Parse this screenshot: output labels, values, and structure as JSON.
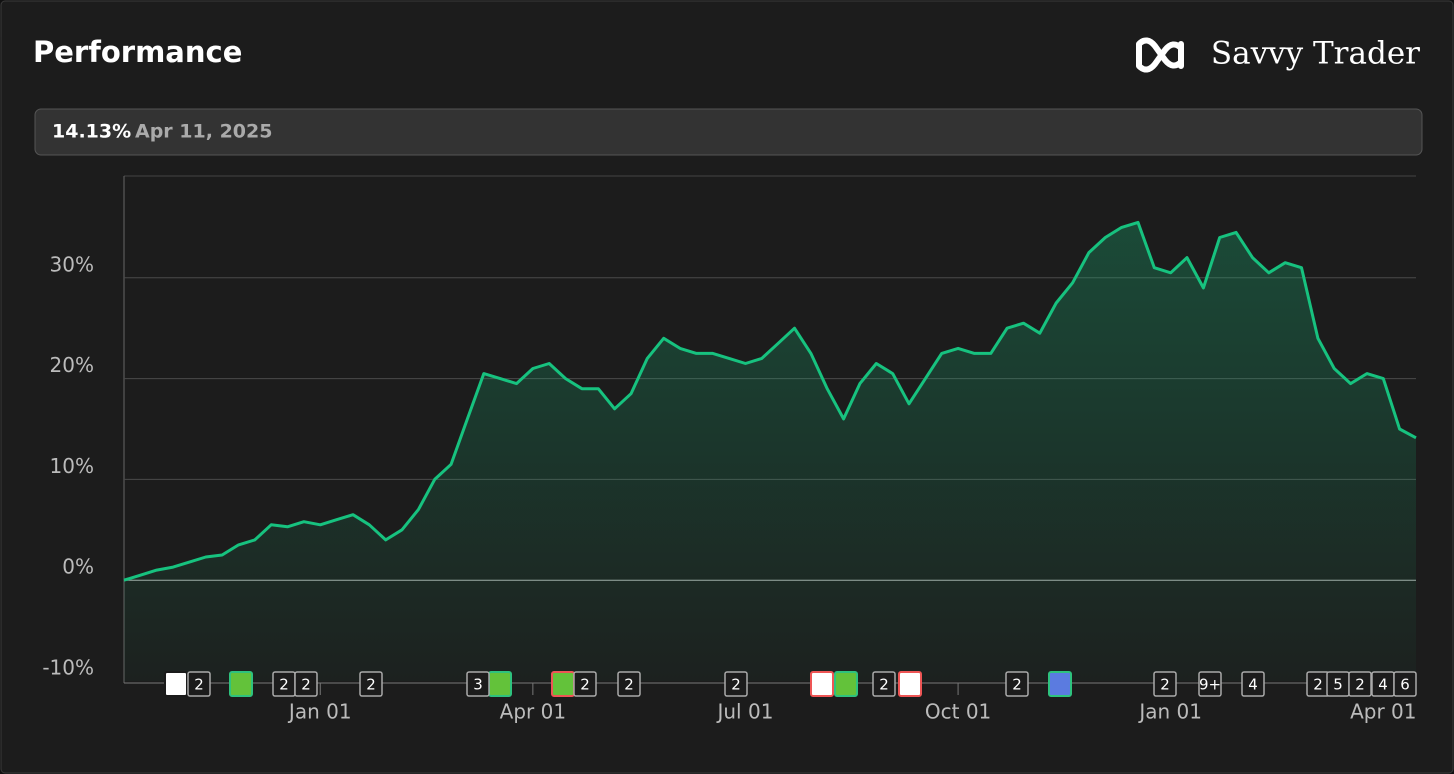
{
  "header": {
    "title": "Performance",
    "brand": "Savvy Trader"
  },
  "summary": {
    "return": "14.13%",
    "date": "Apr 11, 2025"
  },
  "chart_data": {
    "type": "area",
    "categories": [
      null,
      null,
      null,
      null,
      null,
      null,
      null,
      null,
      null,
      null,
      null,
      null,
      "Jan 01",
      null,
      null,
      null,
      null,
      null,
      null,
      null,
      null,
      null,
      null,
      null,
      null,
      "Apr 01",
      null,
      null,
      null,
      null,
      null,
      null,
      null,
      null,
      null,
      null,
      null,
      null,
      "Jul 01",
      null,
      null,
      null,
      null,
      null,
      null,
      null,
      null,
      null,
      null,
      null,
      null,
      "Oct 01",
      null,
      null,
      null,
      null,
      null,
      null,
      null,
      null,
      null,
      null,
      null,
      null,
      "Jan 01",
      null,
      null,
      null,
      null,
      null,
      null,
      null,
      null,
      null,
      null,
      null,
      null,
      "Apr 01",
      null,
      null
    ],
    "series": [
      {
        "color": "#17c27f",
        "values": [
          0,
          0.5,
          1.0,
          1.3,
          1.8,
          2.3,
          2.5,
          3.5,
          4.0,
          5.5,
          5.3,
          5.8,
          5.5,
          6.0,
          6.5,
          5.5,
          4.0,
          5.0,
          7.0,
          10.0,
          11.5,
          16.0,
          20.5,
          20.0,
          19.5,
          21.0,
          21.5,
          20.0,
          19.0,
          19.0,
          17.0,
          18.5,
          22.0,
          24.0,
          23.0,
          22.5,
          22.5,
          22.0,
          21.5,
          22.0,
          23.5,
          25.0,
          22.5,
          19.0,
          16.0,
          19.5,
          21.5,
          20.5,
          17.5,
          20.0,
          22.5,
          23.0,
          22.5,
          22.5,
          25.0,
          25.5,
          24.5,
          27.5,
          29.5,
          32.5,
          34.0,
          35.0,
          35.5,
          31.0,
          30.5,
          32.0,
          29.0,
          34.0,
          34.5,
          32.0,
          30.5,
          31.5,
          31.0,
          24.0,
          21.0,
          19.5,
          20.5,
          20.0,
          15.0,
          14.13
        ]
      }
    ],
    "ylim": [
      -10,
      40
    ],
    "yticks": [
      {
        "value": -10,
        "label": "-10%"
      },
      {
        "value": 0,
        "label": "0%"
      },
      {
        "value": 10,
        "label": "10%"
      },
      {
        "value": 20,
        "label": "20%"
      },
      {
        "value": 30,
        "label": "30%"
      }
    ],
    "grid": true
  },
  "event_badges": [
    "2",
    "2",
    "2",
    "2",
    "3",
    "2",
    "2",
    "2",
    "2",
    "2",
    "2",
    "9+",
    "4",
    "2",
    "5",
    "2",
    "4",
    "6"
  ]
}
